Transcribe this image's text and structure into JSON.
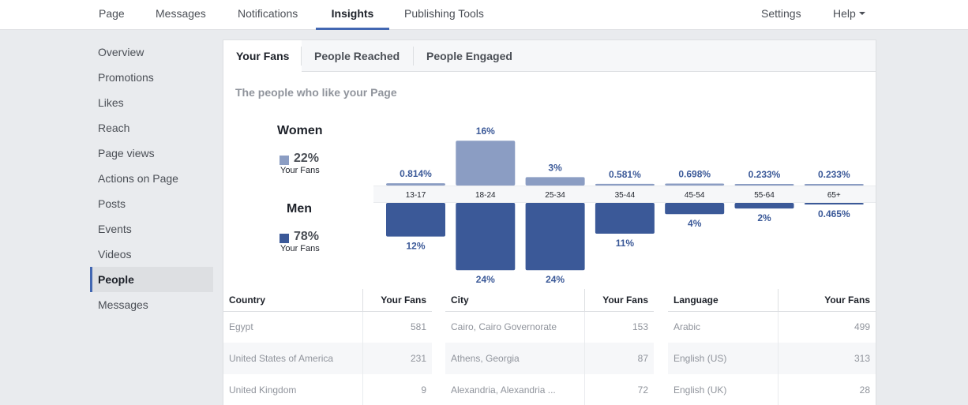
{
  "topnav": {
    "items": [
      {
        "label": "Page"
      },
      {
        "label": "Messages"
      },
      {
        "label": "Notifications"
      },
      {
        "label": "Insights"
      },
      {
        "label": "Publishing Tools"
      }
    ],
    "settings_label": "Settings",
    "help_label": "Help",
    "active": "Insights"
  },
  "sidebar": {
    "items": [
      {
        "label": "Overview"
      },
      {
        "label": "Promotions"
      },
      {
        "label": "Likes"
      },
      {
        "label": "Reach"
      },
      {
        "label": "Page views"
      },
      {
        "label": "Actions on Page"
      },
      {
        "label": "Posts"
      },
      {
        "label": "Events"
      },
      {
        "label": "Videos"
      },
      {
        "label": "People"
      },
      {
        "label": "Messages"
      }
    ],
    "active": "People"
  },
  "tabs": [
    {
      "label": "Your Fans"
    },
    {
      "label": "People Reached"
    },
    {
      "label": "People Engaged"
    }
  ],
  "section_title": "The people who like your Page",
  "legend": {
    "women": {
      "title": "Women",
      "pct": "22%",
      "sub": "Your Fans"
    },
    "men": {
      "title": "Men",
      "pct": "78%",
      "sub": "Your Fans"
    }
  },
  "colors": {
    "women": "#8b9dc3",
    "men": "#3b5998",
    "accent": "#4267b2"
  },
  "chart_data": {
    "type": "bar",
    "categories": [
      "13-17",
      "18-24",
      "25-34",
      "35-44",
      "45-54",
      "55-64",
      "65+"
    ],
    "series": [
      {
        "name": "Women",
        "values": [
          0.814,
          16,
          3,
          0.581,
          0.698,
          0.233,
          0.233
        ],
        "labels": [
          "0.814%",
          "16%",
          "3%",
          "0.581%",
          "0.698%",
          "0.233%",
          "0.233%"
        ]
      },
      {
        "name": "Men",
        "values": [
          12,
          24,
          24,
          11,
          4,
          2,
          0.465
        ],
        "labels": [
          "12%",
          "24%",
          "24%",
          "11%",
          "4%",
          "2%",
          "0.465%"
        ]
      }
    ]
  },
  "tables": [
    {
      "headers": [
        "Country",
        "Your Fans"
      ],
      "rows": [
        {
          "name": "Egypt",
          "value": "581"
        },
        {
          "name": "United States of America",
          "value": "231"
        },
        {
          "name": "United Kingdom",
          "value": "9"
        }
      ]
    },
    {
      "headers": [
        "City",
        "Your Fans"
      ],
      "rows": [
        {
          "name": "Cairo, Cairo Governorate",
          "value": "153"
        },
        {
          "name": "Athens, Georgia",
          "value": "87"
        },
        {
          "name": "Alexandria, Alexandria ...",
          "value": "72"
        }
      ]
    },
    {
      "headers": [
        "Language",
        "Your Fans"
      ],
      "rows": [
        {
          "name": "Arabic",
          "value": "499"
        },
        {
          "name": "English (US)",
          "value": "313"
        },
        {
          "name": "English (UK)",
          "value": "28"
        }
      ]
    }
  ]
}
